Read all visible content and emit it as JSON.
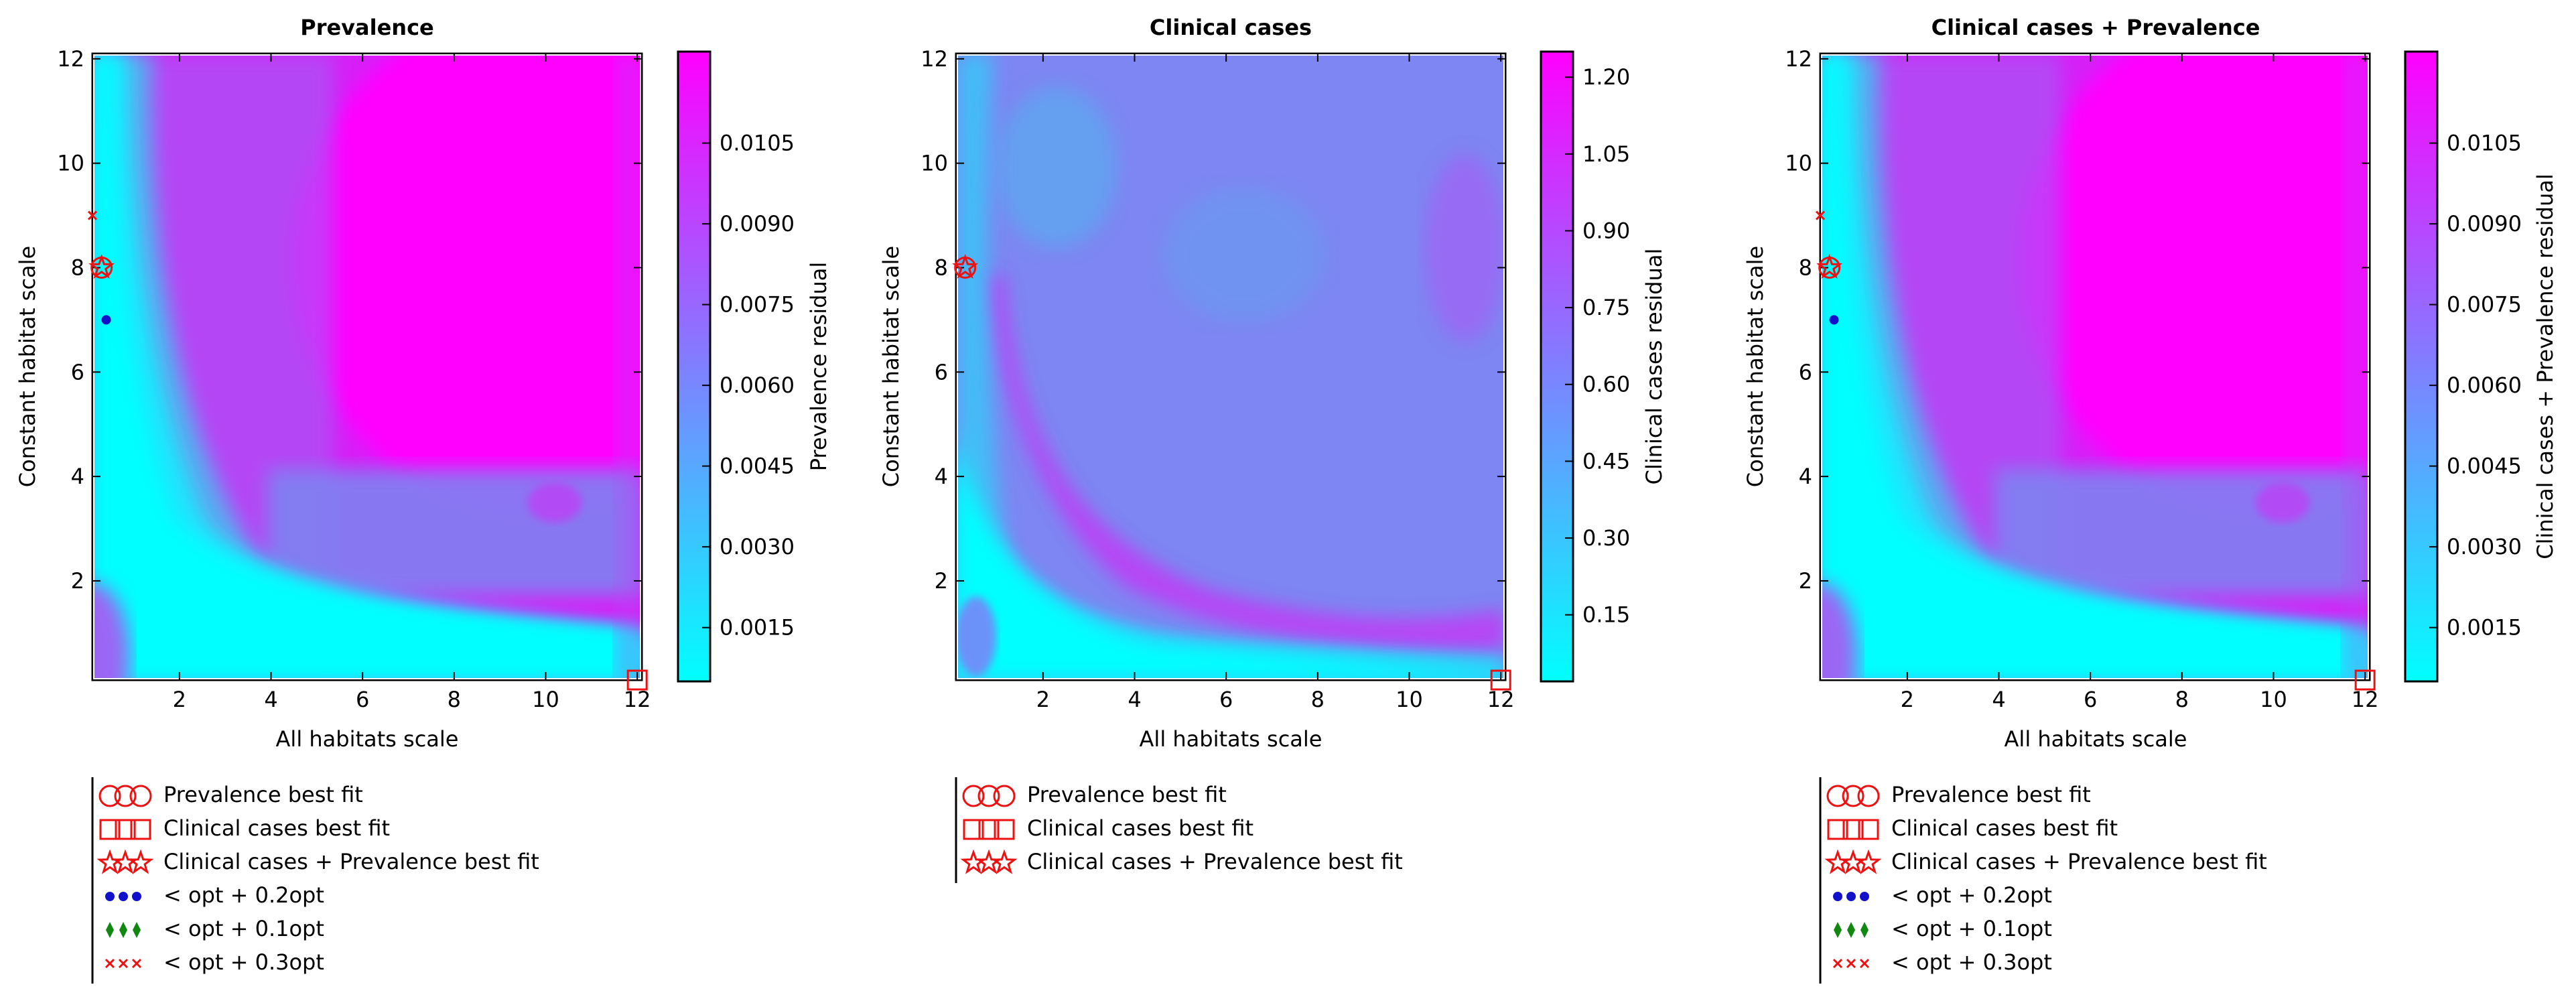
{
  "chart_data": [
    {
      "type": "heatmap",
      "title": "Prevalence",
      "xlabel": "All habitats scale",
      "ylabel": "Constant habitat scale",
      "xlim": [
        0.1,
        12.1
      ],
      "ylim": [
        0.1,
        12.1
      ],
      "xticks": [
        "2",
        "4",
        "6",
        "8",
        "10",
        "12"
      ],
      "yticks": [
        "2",
        "4",
        "6",
        "8",
        "10",
        "12"
      ],
      "colorbar": {
        "label": "Prevalence residual",
        "range": [
          0.0005,
          0.0122
        ],
        "ticks": [
          "0.0015",
          "0.0030",
          "0.0045",
          "0.0060",
          "0.0075",
          "0.0090",
          "0.0105"
        ],
        "colors": [
          "#00ffff",
          "#ff00ff"
        ]
      },
      "markers": [
        {
          "label": "Prevalence best fit",
          "shape": "circle",
          "x": 0.3,
          "y": 8.0
        },
        {
          "label": "Clinical cases best fit",
          "shape": "square",
          "x": 12.0,
          "y": 0.1
        },
        {
          "label": "Clinical cases + Prevalence best fit",
          "shape": "star",
          "x": 0.3,
          "y": 8.0
        },
        {
          "label": "< opt + 0.2opt",
          "shape": "dot",
          "x": 0.4,
          "y": 7.0
        },
        {
          "label": "< opt + 0.1opt",
          "shape": "diamond"
        },
        {
          "label": "< opt + 0.3opt",
          "shape": "x",
          "x": 0.1,
          "y": 9.0
        }
      ]
    },
    {
      "type": "heatmap",
      "title": "Clinical cases",
      "xlabel": "All habitats scale",
      "ylabel": "Constant habitat scale",
      "xlim": [
        0.1,
        12.1
      ],
      "ylim": [
        0.1,
        12.1
      ],
      "xticks": [
        "2",
        "4",
        "6",
        "8",
        "10",
        "12"
      ],
      "yticks": [
        "2",
        "4",
        "6",
        "8",
        "10",
        "12"
      ],
      "colorbar": {
        "label": "Clinical cases residual",
        "range": [
          0.02,
          1.25
        ],
        "ticks": [
          "0.15",
          "0.30",
          "0.45",
          "0.60",
          "0.75",
          "0.90",
          "1.05",
          "1.20"
        ],
        "colors": [
          "#00ffff",
          "#ff00ff"
        ]
      },
      "markers": [
        {
          "label": "Prevalence best fit",
          "shape": "circle",
          "x": 0.3,
          "y": 8.0
        },
        {
          "label": "Clinical cases best fit",
          "shape": "square",
          "x": 12.0,
          "y": 0.1
        },
        {
          "label": "Clinical cases + Prevalence best fit",
          "shape": "star",
          "x": 0.3,
          "y": 8.0
        }
      ]
    },
    {
      "type": "heatmap",
      "title": "Clinical cases + Prevalence",
      "xlabel": "All habitats scale",
      "ylabel": "Constant habitat scale",
      "xlim": [
        0.1,
        12.1
      ],
      "ylim": [
        0.1,
        12.1
      ],
      "xticks": [
        "2",
        "4",
        "6",
        "8",
        "10",
        "12"
      ],
      "yticks": [
        "2",
        "4",
        "6",
        "8",
        "10",
        "12"
      ],
      "colorbar": {
        "label": "Clinical cases + Prevalence residual",
        "range": [
          0.0005,
          0.0122
        ],
        "ticks": [
          "0.0015",
          "0.0030",
          "0.0045",
          "0.0060",
          "0.0075",
          "0.0090",
          "0.0105"
        ],
        "colors": [
          "#00ffff",
          "#ff00ff"
        ]
      },
      "markers": [
        {
          "label": "Prevalence best fit",
          "shape": "circle",
          "x": 0.3,
          "y": 8.0
        },
        {
          "label": "Clinical cases best fit",
          "shape": "square",
          "x": 12.0,
          "y": 0.1
        },
        {
          "label": "Clinical cases + Prevalence best fit",
          "shape": "star",
          "x": 0.3,
          "y": 8.0
        },
        {
          "label": "< opt + 0.2opt",
          "shape": "dot",
          "x": 0.4,
          "y": 7.0
        },
        {
          "label": "< opt + 0.1opt",
          "shape": "diamond"
        },
        {
          "label": "< opt + 0.3opt",
          "shape": "x",
          "x": 0.1,
          "y": 9.0
        }
      ]
    }
  ],
  "marker_colors": {
    "red": "#ee1111",
    "blue": "#1111cc",
    "green": "#118811"
  }
}
